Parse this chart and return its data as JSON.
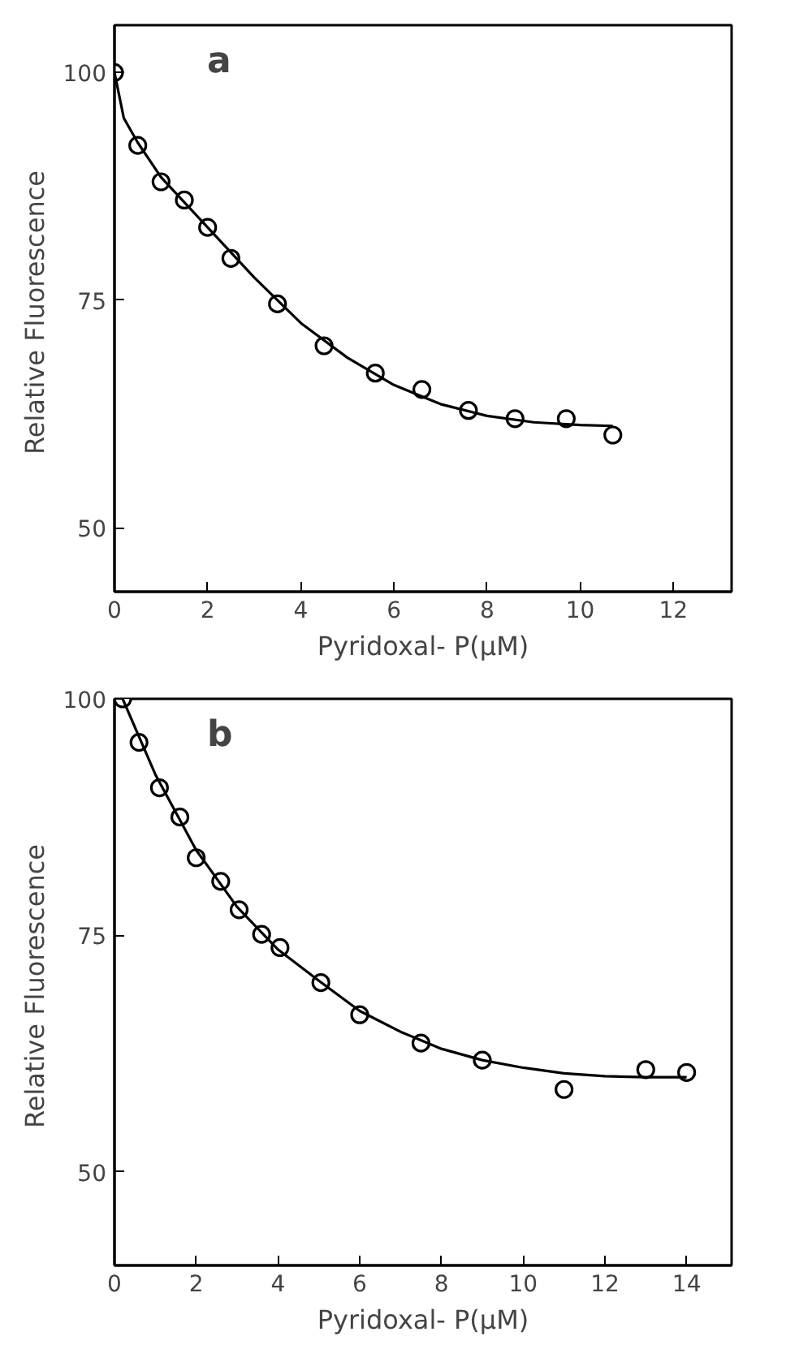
{
  "chart_data": [
    {
      "type": "scatter",
      "xlabel": "Pyridoxal- P(μM)",
      "ylabel": "Relative  Fluorescence",
      "annotations": [
        "a"
      ],
      "xlim": [
        0,
        13.25
      ],
      "ylim": [
        43,
        105.2
      ],
      "xticks": [
        0,
        2,
        4,
        6,
        8,
        10,
        12
      ],
      "yticks": [
        50,
        75,
        100
      ],
      "grid": false,
      "series": [
        {
          "marker": "circle",
          "color": "#000000",
          "x": [
            0,
            0.5,
            1,
            1.5,
            2,
            2.5,
            3.5,
            4.5,
            5.6,
            6.6,
            7.6,
            8.6,
            9.7,
            10.7
          ],
          "values": [
            100,
            92,
            88,
            86,
            83,
            79.6,
            74.6,
            70,
            67,
            65.2,
            62.9,
            62,
            62,
            60.2
          ]
        },
        {
          "type": "line",
          "color": "#000000",
          "x": [
            0,
            0.2,
            0.5,
            1,
            2,
            3,
            4,
            5,
            6,
            7,
            8,
            9,
            10,
            10.7
          ],
          "values": [
            100,
            95,
            92.3,
            88.5,
            83,
            77.5,
            72.5,
            68.7,
            65.7,
            63.6,
            62.3,
            61.6,
            61.3,
            61.2
          ]
        }
      ]
    },
    {
      "type": "scatter",
      "xlabel": "Pyridoxal- P(μM)",
      "ylabel": "Relative  Fluorescence",
      "annotations": [
        "b"
      ],
      "xlim": [
        0,
        15.1
      ],
      "ylim": [
        40.1,
        100
      ],
      "xticks": [
        0,
        2,
        4,
        6,
        8,
        10,
        12,
        14
      ],
      "yticks": [
        50,
        75,
        100
      ],
      "grid": false,
      "series": [
        {
          "marker": "circle",
          "color": "#000000",
          "x": [
            0.2,
            0.6,
            1.1,
            1.6,
            2,
            2.6,
            3.05,
            3.6,
            4.05,
            5.05,
            6,
            7.5,
            9,
            11,
            13,
            14
          ],
          "values": [
            100,
            95.4,
            90.6,
            87.5,
            83.2,
            80.7,
            77.7,
            75.1,
            73.7,
            70,
            66.6,
            63.6,
            61.8,
            58.7,
            60.8,
            60.5
          ]
        },
        {
          "type": "line",
          "color": "#000000",
          "x": [
            0.2,
            1,
            2,
            3,
            4,
            5,
            6,
            7,
            8,
            9,
            10,
            11,
            12,
            13,
            14
          ],
          "values": [
            100,
            92,
            84,
            78,
            73.5,
            70.2,
            67,
            64.8,
            63,
            61.8,
            61,
            60.4,
            60.1,
            60,
            60
          ]
        }
      ]
    }
  ]
}
